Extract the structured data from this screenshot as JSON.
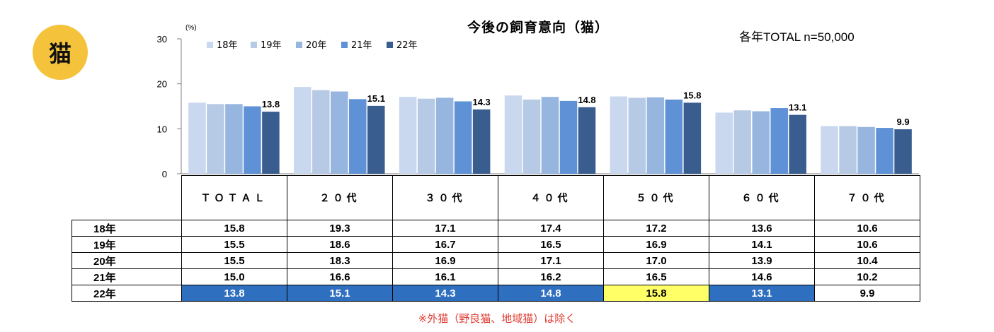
{
  "badge": "猫",
  "title": "今後の飼育意向（猫）",
  "sample_note": "各年TOTAL n=50,000",
  "footnote": "※外猫（野良猫、地域猫）は除く",
  "colors": {
    "18年": "#c9d8ef",
    "19年": "#b7cae5",
    "20年": "#96b6e0",
    "21年": "#5f91d6",
    "22年": "#3a5d8f",
    "highlight_blue": "#2e6fbf",
    "highlight_yellow": "#ffff66",
    "badge": "#f5c33b",
    "footnote": "#e03a2f"
  },
  "chart_data": {
    "type": "bar",
    "title": "今後の飼育意向（猫）",
    "ylabel": "(%)",
    "ylim": [
      0,
      30
    ],
    "yticks": [
      "0",
      "10",
      "20",
      "30"
    ],
    "legend_position": "top-left",
    "grid": false,
    "categories": [
      "ＴＯＴＡＬ",
      "２０代",
      "３０代",
      "４０代",
      "５０代",
      "６０代",
      "７０代"
    ],
    "series": [
      {
        "name": "18年",
        "values": [
          15.8,
          19.3,
          17.1,
          17.4,
          17.2,
          13.6,
          10.6
        ]
      },
      {
        "name": "19年",
        "values": [
          15.5,
          18.6,
          16.7,
          16.5,
          16.9,
          14.1,
          10.6
        ]
      },
      {
        "name": "20年",
        "values": [
          15.5,
          18.3,
          16.9,
          17.1,
          17.0,
          13.9,
          10.4
        ]
      },
      {
        "name": "21年",
        "values": [
          15.0,
          16.6,
          16.1,
          16.2,
          16.5,
          14.6,
          10.2
        ]
      },
      {
        "name": "22年",
        "values": [
          13.8,
          15.1,
          14.3,
          14.8,
          15.8,
          13.1,
          9.9
        ]
      }
    ],
    "data_labels": [
      "13.8",
      "15.1",
      "14.3",
      "14.8",
      "15.8",
      "13.1",
      "9.9"
    ]
  },
  "table": {
    "headers": [
      "ＴＯＴＡＬ",
      "２０代",
      "３０代",
      "４０代",
      "５０代",
      "６０代",
      "７０代"
    ],
    "rows": [
      {
        "label": "18年",
        "values": [
          "15.8",
          "19.3",
          "17.1",
          "17.4",
          "17.2",
          "13.6",
          "10.6"
        ]
      },
      {
        "label": "19年",
        "values": [
          "15.5",
          "18.6",
          "16.7",
          "16.5",
          "16.9",
          "14.1",
          "10.6"
        ]
      },
      {
        "label": "20年",
        "values": [
          "15.5",
          "18.3",
          "16.9",
          "17.1",
          "17.0",
          "13.9",
          "10.4"
        ]
      },
      {
        "label": "21年",
        "values": [
          "15.0",
          "16.6",
          "16.1",
          "16.2",
          "16.5",
          "14.6",
          "10.2"
        ]
      },
      {
        "label": "22年",
        "values": [
          "13.8",
          "15.1",
          "14.3",
          "14.8",
          "15.8",
          "13.1",
          "9.9"
        ]
      }
    ]
  }
}
